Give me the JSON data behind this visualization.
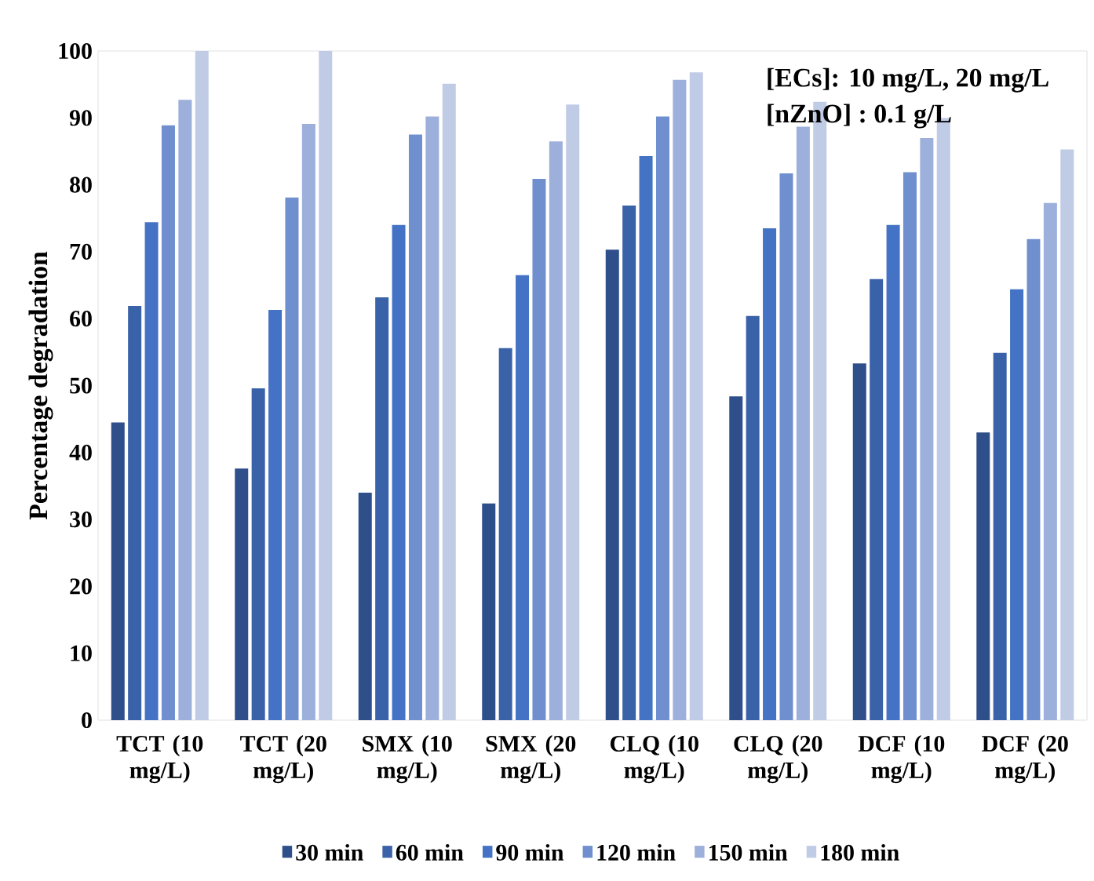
{
  "chart_data": {
    "type": "bar",
    "ylabel": "Percentage degradation",
    "categories": [
      "TCT (10 mg/L)",
      "TCT (20 mg/L)",
      "SMX (10 mg/L)",
      "SMX (20 mg/L)",
      "CLQ (10 mg/L)",
      "CLQ (20 mg/L)",
      "DCF (10 mg/L)",
      "DCF (20 mg/L)"
    ],
    "series": [
      {
        "name": "30 min",
        "color": "#2f4f8a",
        "values": [
          44.5,
          37.6,
          34.0,
          32.4,
          70.3,
          48.4,
          53.3,
          43.0
        ]
      },
      {
        "name": "60 min",
        "color": "#3a62a8",
        "values": [
          61.9,
          49.6,
          63.2,
          55.6,
          76.9,
          60.4,
          65.9,
          54.9
        ]
      },
      {
        "name": "90 min",
        "color": "#4472c4",
        "values": [
          74.4,
          61.3,
          74.0,
          66.5,
          84.3,
          73.5,
          74.0,
          64.4
        ]
      },
      {
        "name": "120 min",
        "color": "#6f8fcf",
        "values": [
          88.9,
          78.1,
          87.5,
          80.9,
          90.2,
          81.7,
          81.9,
          71.9
        ]
      },
      {
        "name": "150 min",
        "color": "#9dafdb",
        "values": [
          92.7,
          89.1,
          90.2,
          86.5,
          95.7,
          88.7,
          87.0,
          77.3
        ]
      },
      {
        "name": "180 min",
        "color": "#c0cbe6",
        "values": [
          100,
          100,
          95.1,
          92.0,
          96.8,
          92.4,
          90.0,
          85.3
        ]
      }
    ],
    "ylim": [
      0,
      100
    ],
    "yticks": [
      0,
      10,
      20,
      30,
      40,
      50,
      60,
      70,
      80,
      90,
      100
    ],
    "legend": "bottom",
    "annotations": [
      "[ECs]: 10 mg/L, 20 mg/L",
      "[nZnO] : 0.1 g/L"
    ]
  }
}
